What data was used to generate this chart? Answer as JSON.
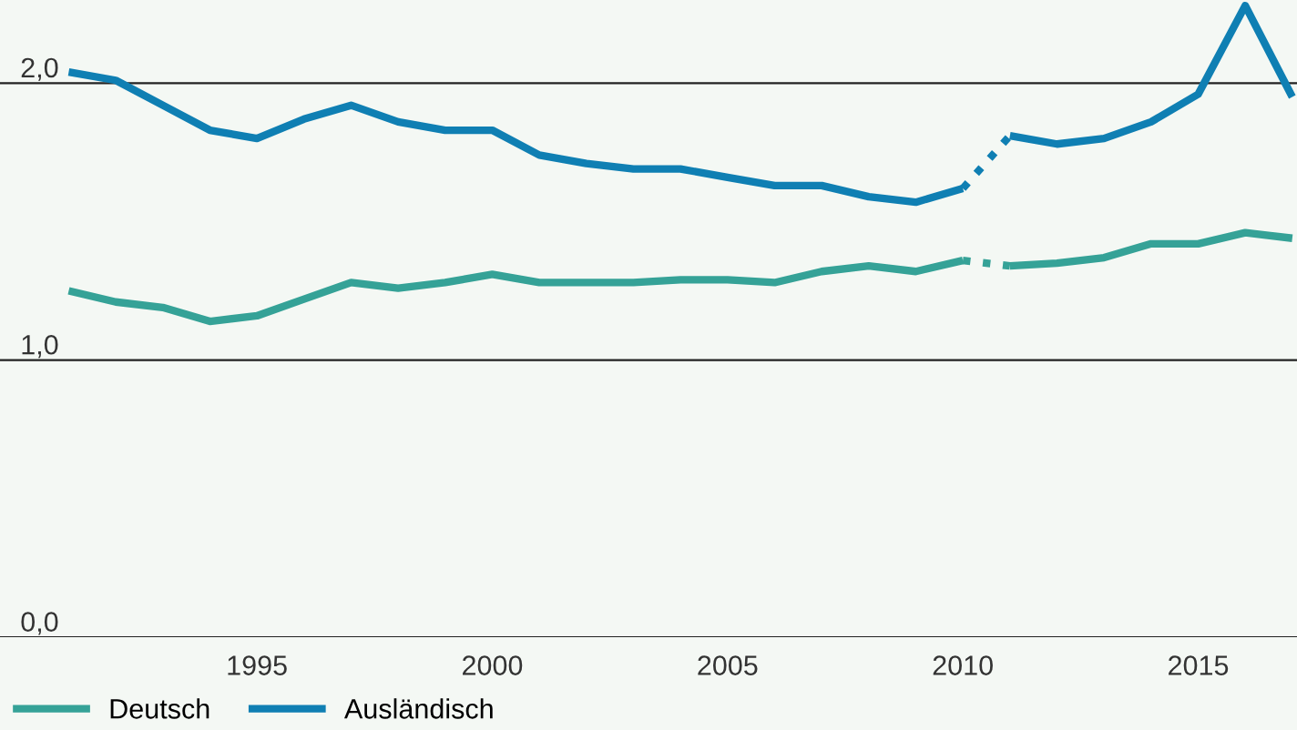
{
  "chart_data": {
    "type": "line",
    "xlim": [
      1989.54,
      2017.1
    ],
    "ylim": [
      0,
      2.3
    ],
    "xticks": [
      1995,
      2000,
      2005,
      2010,
      2015
    ],
    "yticks": [
      {
        "value": 0,
        "label": "0,0"
      },
      {
        "value": 1,
        "label": "1,0"
      },
      {
        "value": 2,
        "label": "2,0"
      }
    ],
    "grid": "y",
    "legend": "bottom left",
    "line_style": "solid",
    "marker": "none",
    "series": [
      {
        "name": "Deutsch",
        "color": "#35a297",
        "x": [
          1991,
          1992,
          1993,
          1994,
          1995,
          1996,
          1997,
          1998,
          1999,
          2000,
          2001,
          2002,
          2003,
          2004,
          2005,
          2006,
          2007,
          2008,
          2009,
          2010
        ],
        "values": [
          1.25,
          1.21,
          1.19,
          1.14,
          1.16,
          1.22,
          1.28,
          1.26,
          1.28,
          1.31,
          1.28,
          1.28,
          1.28,
          1.29,
          1.29,
          1.28,
          1.32,
          1.34,
          1.32,
          1.36
        ]
      },
      {
        "color": "#35a297",
        "line_style": "dotted",
        "x": [
          2010,
          2011
        ],
        "values": [
          1.36,
          1.34
        ]
      },
      {
        "color": "#35a297",
        "x": [
          2011,
          2012,
          2013,
          2014,
          2015,
          2016,
          2017
        ],
        "values": [
          1.34,
          1.35,
          1.37,
          1.42,
          1.42,
          1.46,
          1.44
        ]
      },
      {
        "name": "Ausländisch",
        "color": "#0f7fb3",
        "x": [
          1991,
          1992,
          1993,
          1994,
          1995,
          1996,
          1997,
          1998,
          1999,
          2000,
          2001,
          2002,
          2003,
          2004,
          2005,
          2006,
          2007,
          2008,
          2009,
          2010
        ],
        "values": [
          2.04,
          2.01,
          1.92,
          1.83,
          1.8,
          1.87,
          1.92,
          1.86,
          1.83,
          1.83,
          1.74,
          1.71,
          1.69,
          1.69,
          1.66,
          1.63,
          1.63,
          1.59,
          1.57,
          1.62
        ]
      },
      {
        "color": "#0f7fb3",
        "line_style": "dotted",
        "x": [
          2010,
          2011
        ],
        "values": [
          1.62,
          1.81
        ]
      },
      {
        "color": "#0f7fb3",
        "x": [
          2011,
          2012,
          2013,
          2014,
          2015,
          2016,
          2017
        ],
        "values": [
          1.81,
          1.78,
          1.8,
          1.86,
          1.96,
          2.28,
          1.95
        ]
      }
    ]
  }
}
